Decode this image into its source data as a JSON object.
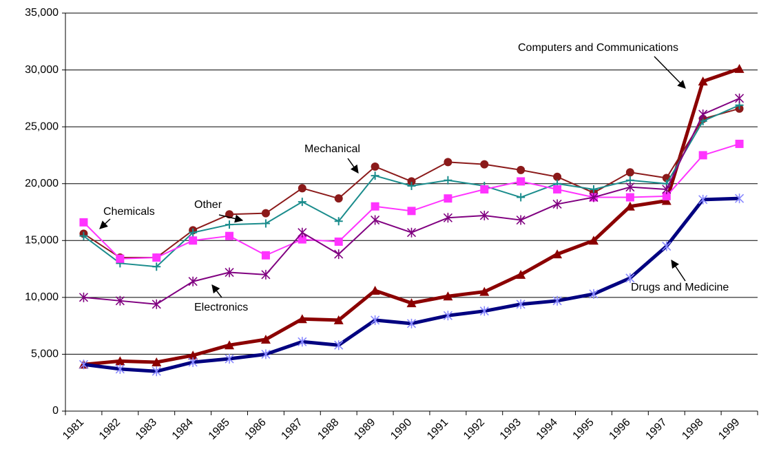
{
  "chart_data": {
    "type": "line",
    "categories": [
      "1981",
      "1982",
      "1983",
      "1984",
      "1985",
      "1986",
      "1987",
      "1988",
      "1989",
      "1990",
      "1991",
      "1992",
      "1993",
      "1994",
      "1995",
      "1996",
      "1997",
      "1998",
      "1999"
    ],
    "ylim": [
      0,
      35000
    ],
    "yticks": [
      0,
      {
        "value": 5000,
        "label": "5,000"
      },
      {
        "value": 10000,
        "label": "10,000"
      },
      {
        "value": 15000,
        "label": "15,000"
      },
      {
        "value": 20000,
        "label": "20,000"
      },
      {
        "value": 25000,
        "label": "25,000"
      },
      {
        "value": 30000,
        "label": "30,000"
      },
      {
        "value": 35000,
        "label": "35,000"
      }
    ],
    "grid": true,
    "series": [
      {
        "name": "Computers and Communications",
        "color": "#8b0000",
        "marker": "triangle",
        "width": 5,
        "values": [
          4100,
          4400,
          4300,
          4900,
          5800,
          6300,
          8100,
          8000,
          10600,
          9500,
          10100,
          10500,
          12000,
          13800,
          15000,
          18000,
          18500,
          29000,
          30100
        ]
      },
      {
        "name": "Drugs and Medicine",
        "color": "#000080",
        "marker": "asterisk",
        "width": 5,
        "values": [
          4100,
          3700,
          3500,
          4300,
          4600,
          5000,
          6100,
          5800,
          8000,
          7700,
          8400,
          8800,
          9400,
          9700,
          10300,
          11700,
          14500,
          18600,
          18700
        ]
      },
      {
        "name": "Mechanical",
        "color": "#8b1a1a",
        "marker": "circle",
        "width": 2,
        "values": [
          15600,
          13500,
          13500,
          15900,
          17300,
          17400,
          19600,
          18700,
          21500,
          20200,
          21900,
          21700,
          21200,
          20600,
          19200,
          21000,
          20500,
          25700,
          26600
        ]
      },
      {
        "name": "Other",
        "color": "#1a8c8c",
        "marker": "plus",
        "width": 2,
        "values": [
          15400,
          13000,
          12700,
          15700,
          16400,
          16500,
          18400,
          16700,
          20700,
          19800,
          20300,
          19800,
          18800,
          20000,
          19500,
          20300,
          20000,
          25500,
          26900
        ]
      },
      {
        "name": "Chemicals",
        "color": "#ff33ff",
        "marker": "square",
        "width": 2,
        "values": [
          16600,
          13400,
          13500,
          15000,
          15400,
          13700,
          15100,
          14900,
          18000,
          17600,
          18700,
          19500,
          20200,
          19500,
          18800,
          18800,
          18900,
          22500,
          23500
        ]
      },
      {
        "name": "Electronics",
        "color": "#800080",
        "marker": "asterisk",
        "width": 2,
        "values": [
          10000,
          9700,
          9400,
          11400,
          12200,
          12000,
          15700,
          13800,
          16800,
          15700,
          17000,
          17200,
          16800,
          18200,
          18800,
          19700,
          19500,
          26100,
          27500
        ]
      }
    ]
  }
}
